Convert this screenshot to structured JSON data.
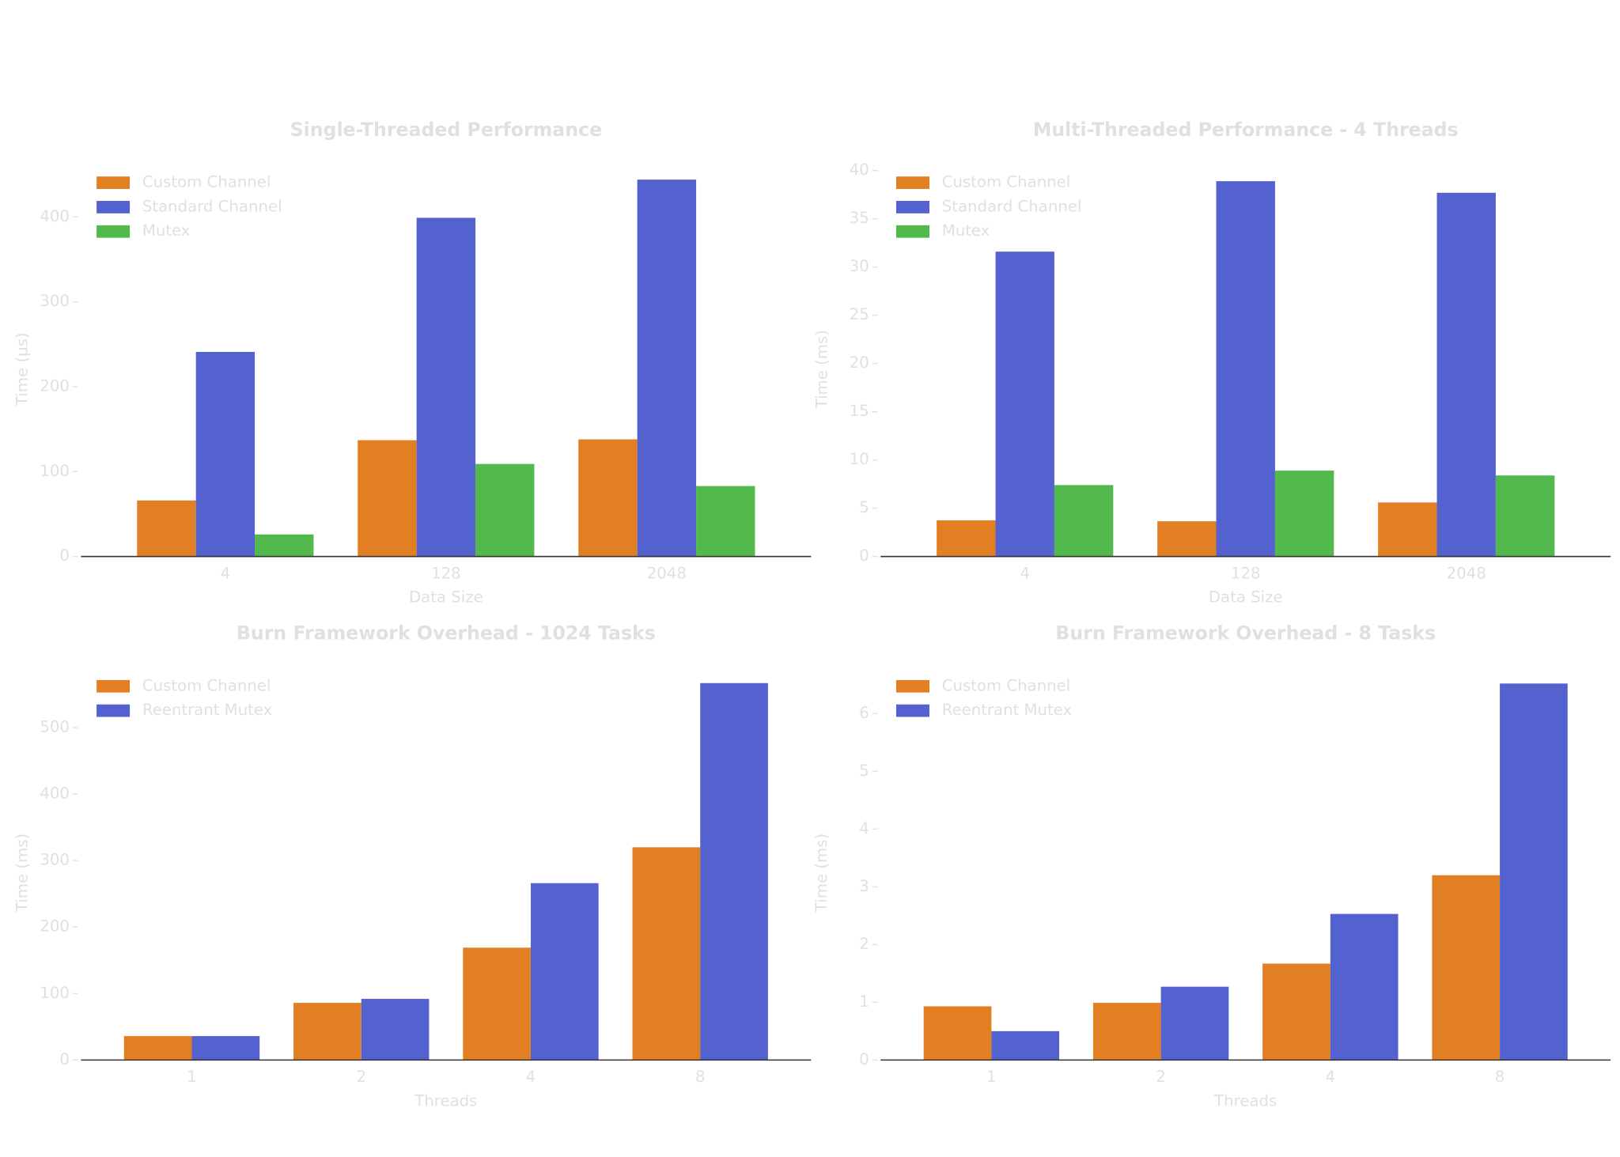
{
  "chart_data": [
    {
      "type": "bar",
      "title": "Single-Threaded Performance",
      "xlabel": "Data Size",
      "ylabel": "Time (µs)",
      "categories": [
        "4",
        "128",
        "2048"
      ],
      "series": [
        {
          "name": "Custom Channel",
          "color": "#e37f23",
          "values": [
            66,
            137,
            138
          ]
        },
        {
          "name": "Standard Channel",
          "color": "#5462cf",
          "values": [
            241,
            399,
            444
          ]
        },
        {
          "name": "Mutex",
          "color": "#52b94d",
          "values": [
            26,
            109,
            83
          ]
        }
      ],
      "ylim": [
        0,
        466
      ],
      "yticks": [
        0,
        100,
        200,
        300,
        400
      ]
    },
    {
      "type": "bar",
      "title": "Multi-Threaded Performance - 4 Threads",
      "xlabel": "Data Size",
      "ylabel": "Time (ms)",
      "categories": [
        "4",
        "128",
        "2048"
      ],
      "series": [
        {
          "name": "Custom Channel",
          "color": "#e37f23",
          "values": [
            3.75,
            3.65,
            5.6
          ]
        },
        {
          "name": "Standard Channel",
          "color": "#5462cf",
          "values": [
            31.6,
            38.9,
            37.7
          ]
        },
        {
          "name": "Mutex",
          "color": "#52b94d",
          "values": [
            7.4,
            8.9,
            8.4
          ]
        }
      ],
      "ylim": [
        0,
        41
      ],
      "yticks": [
        0,
        5,
        10,
        15,
        20,
        25,
        30,
        35,
        40
      ]
    },
    {
      "type": "bar",
      "title": "Burn Framework Overhead - 1024 Tasks",
      "xlabel": "Threads",
      "ylabel": "Time (ms)",
      "categories": [
        "1",
        "2",
        "4",
        "8"
      ],
      "series": [
        {
          "name": "Custom Channel",
          "color": "#e37f23",
          "values": [
            36,
            86,
            169,
            320
          ]
        },
        {
          "name": "Reentrant Mutex",
          "color": "#5462cf",
          "values": [
            36,
            92,
            266,
            567
          ]
        }
      ],
      "ylim": [
        0,
        595
      ],
      "yticks": [
        0,
        100,
        200,
        300,
        400,
        500
      ]
    },
    {
      "type": "bar",
      "title": "Burn Framework Overhead - 8 Tasks",
      "xlabel": "Threads",
      "ylabel": "Time (ms)",
      "categories": [
        "1",
        "2",
        "4",
        "8"
      ],
      "series": [
        {
          "name": "Custom Channel",
          "color": "#e37f23",
          "values": [
            0.93,
            0.99,
            1.67,
            3.2
          ]
        },
        {
          "name": "Reentrant Mutex",
          "color": "#5462cf",
          "values": [
            0.5,
            1.27,
            2.53,
            6.52
          ]
        }
      ],
      "ylim": [
        0,
        6.85
      ],
      "yticks": [
        0,
        1,
        2,
        3,
        4,
        5,
        6
      ]
    }
  ]
}
